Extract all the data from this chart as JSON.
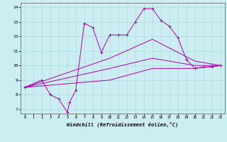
{
  "title": "",
  "xlabel": "Windchill (Refroidissement éolien,°C)",
  "xlim": [
    0,
    23
  ],
  "ylim": [
    7,
    14
  ],
  "xticks": [
    0,
    1,
    2,
    3,
    4,
    5,
    6,
    7,
    8,
    9,
    10,
    11,
    12,
    13,
    14,
    15,
    16,
    17,
    18,
    19,
    20,
    21,
    22,
    23
  ],
  "yticks": [
    7,
    8,
    9,
    10,
    11,
    12,
    13,
    14
  ],
  "background_color": "#cceef2",
  "grid_color": "#aadddd",
  "line_color": "#aa00aa",
  "lines": [
    {
      "x": [
        0,
        2,
        3,
        4,
        5,
        5.3,
        6,
        7,
        8,
        9,
        10,
        11,
        12,
        13,
        14,
        15,
        16,
        17,
        18,
        19,
        20,
        21,
        22,
        23
      ],
      "y": [
        8.5,
        9.0,
        8.0,
        7.7,
        6.8,
        7.5,
        8.3,
        12.9,
        12.6,
        10.9,
        12.1,
        12.1,
        12.1,
        13.0,
        13.9,
        13.9,
        13.1,
        12.7,
        11.9,
        10.4,
        9.8,
        9.9,
        9.9,
        10.0
      ],
      "marker": true
    },
    {
      "x": [
        0,
        10,
        15,
        20,
        23
      ],
      "y": [
        8.5,
        10.5,
        11.8,
        10.3,
        10.0
      ],
      "marker": false
    },
    {
      "x": [
        0,
        10,
        15,
        20,
        23
      ],
      "y": [
        8.5,
        9.8,
        10.5,
        10.0,
        10.0
      ],
      "marker": false
    },
    {
      "x": [
        0,
        10,
        15,
        20,
        23
      ],
      "y": [
        8.5,
        9.0,
        9.8,
        9.8,
        10.0
      ],
      "marker": false
    }
  ]
}
